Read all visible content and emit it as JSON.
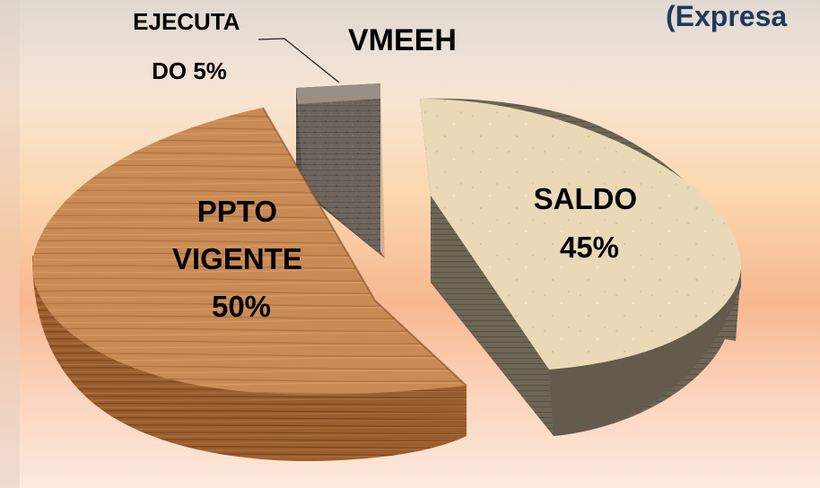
{
  "chart_data": {
    "type": "pie",
    "title": "VMEEH",
    "subtitle": "(Expresa",
    "slices": [
      {
        "label": "EJECUTADO",
        "label_lines": [
          "EJECUTA",
          "DO 5%"
        ],
        "value": 5
      },
      {
        "label": "SALDO",
        "label_lines": [
          "SALDO",
          "45%"
        ],
        "value": 45
      },
      {
        "label": "PPTO VIGENTE",
        "label_lines": [
          "PPTO",
          "VIGENTE",
          "50%"
        ],
        "value": 50
      }
    ],
    "colors": {
      "ejecutado_top": "#8f8278",
      "ejecutado_side": "#4e4843",
      "saldo_top": "#ead9b7",
      "saldo_side": "#6e6555",
      "ppto_top": "#c98b55",
      "ppto_side": "#8e5427"
    }
  }
}
